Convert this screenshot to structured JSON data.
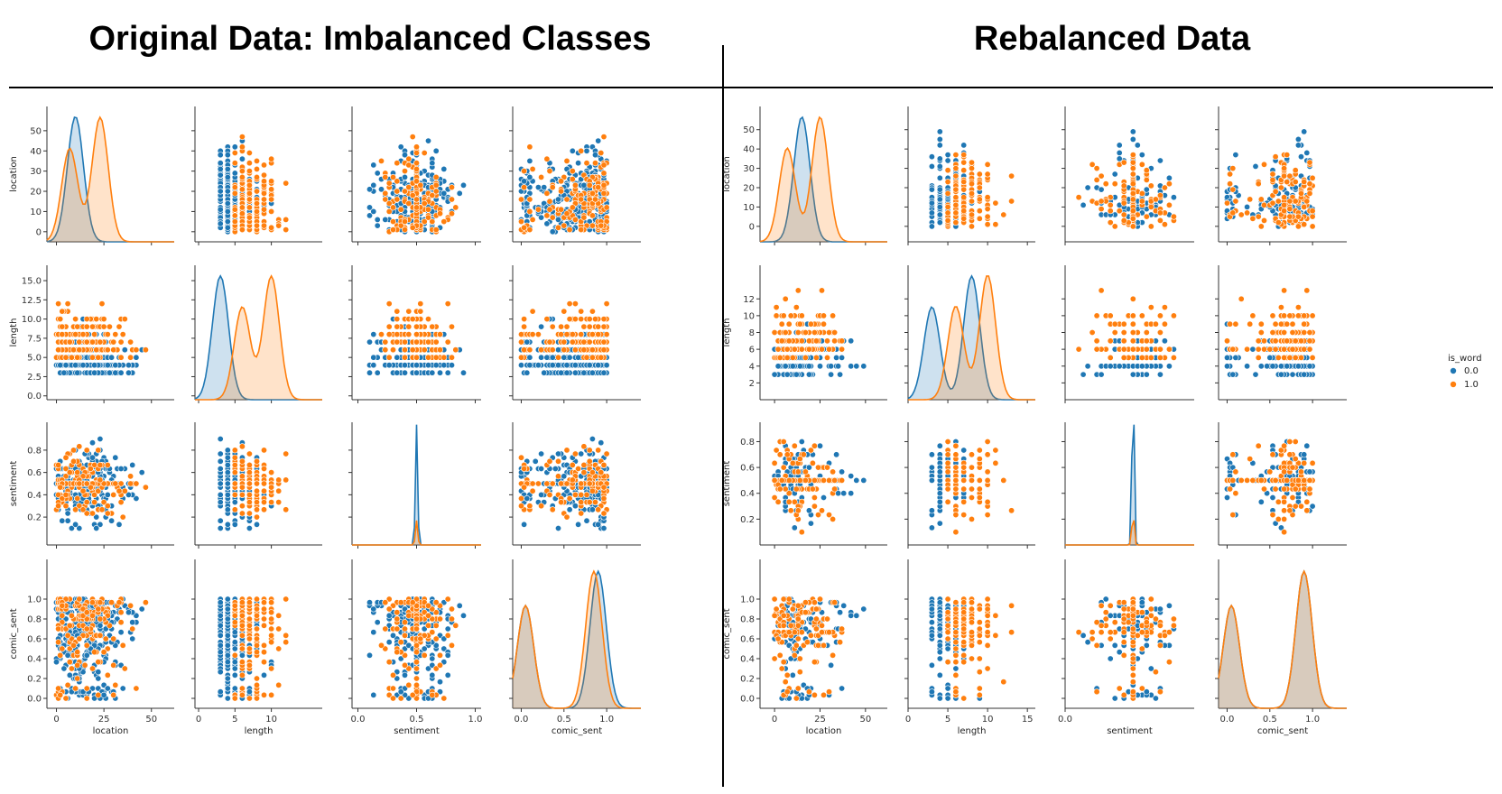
{
  "titles": {
    "left": "Original Data: Imbalanced Classes",
    "right": "Rebalanced Data"
  },
  "colors": {
    "class_0": "#1f77b4",
    "class_1": "#ff7f0e"
  },
  "legend": {
    "title": "is_word",
    "labels": [
      "0.0",
      "1.0"
    ]
  },
  "chart_data": [
    {
      "type": "pairplot",
      "title": "Original Data: Imbalanced Classes",
      "variables": [
        "location",
        "length",
        "sentiment",
        "comic_sent"
      ],
      "hue": "is_word",
      "series_names": [
        "0.0",
        "1.0"
      ],
      "axes": {
        "location": {
          "range": [
            -5,
            62
          ],
          "ticks": [
            0,
            10,
            20,
            30,
            40,
            50
          ],
          "tick_labels": [
            "0",
            "10",
            "20",
            "30",
            "40",
            "50"
          ],
          "x_ticks": [
            0,
            25,
            50
          ],
          "x_tick_labels": [
            "0",
            "25",
            "50"
          ]
        },
        "length": {
          "range": [
            -0.5,
            17
          ],
          "ticks": [
            0,
            2.5,
            5,
            7.5,
            10,
            12.5,
            15
          ],
          "tick_labels": [
            "0.0",
            "2.5",
            "5.0",
            "7.5",
            "10.0",
            "12.5",
            "15.0"
          ],
          "x_ticks": [
            0,
            5,
            10
          ],
          "x_tick_labels": [
            "0",
            "5",
            "10"
          ]
        },
        "sentiment": {
          "range": [
            -0.05,
            1.05
          ],
          "ticks": [
            0.2,
            0.4,
            0.6,
            0.8
          ],
          "tick_labels": [
            "0.2",
            "0.4",
            "0.6",
            "0.8"
          ],
          "x_ticks": [
            0,
            0.5,
            1.0
          ],
          "x_tick_labels": [
            "0.0",
            "0.5",
            "1.0"
          ]
        },
        "comic_sent": {
          "range": [
            -0.1,
            1.4
          ],
          "ticks": [
            0,
            0.2,
            0.4,
            0.6,
            0.8,
            1.0
          ],
          "tick_labels": [
            "0.0",
            "0.2",
            "0.4",
            "0.6",
            "0.8",
            "1.0"
          ],
          "x_ticks": [
            0,
            0.5,
            1.0
          ],
          "x_tick_labels": [
            "0.0",
            "0.5",
            "1.0"
          ]
        }
      },
      "data_ranges": {
        "location": [
          0,
          54
        ],
        "length": [
          1,
          16
        ],
        "sentiment": [
          0.1,
          0.9
        ],
        "comic_sent": [
          0.0,
          1.0
        ]
      },
      "point_count": {
        "0.0": 320,
        "1.0": 160
      },
      "density_modes": {
        "location": {
          "0.0": [
            10
          ],
          "1.0": [
            7,
            23
          ]
        },
        "length": {
          "0.0": [
            3
          ],
          "1.0": [
            6,
            10
          ]
        },
        "sentiment": {
          "0.0": [
            0.5
          ],
          "1.0": [
            0.5
          ]
        },
        "comic_sent": {
          "0.0": [
            0.05,
            0.9
          ],
          "1.0": [
            0.05,
            0.85
          ]
        }
      }
    },
    {
      "type": "pairplot",
      "title": "Rebalanced Data",
      "variables": [
        "location",
        "length",
        "sentiment",
        "comic_sent"
      ],
      "hue": "is_word",
      "series_names": [
        "0.0",
        "1.0"
      ],
      "axes": {
        "location": {
          "range": [
            -8,
            62
          ],
          "ticks": [
            0,
            10,
            20,
            30,
            40,
            50
          ],
          "tick_labels": [
            "0",
            "10",
            "20",
            "30",
            "40",
            "50"
          ],
          "x_ticks": [
            0,
            25,
            50
          ],
          "x_tick_labels": [
            "0",
            "25",
            "50"
          ]
        },
        "length": {
          "range": [
            0,
            16
          ],
          "ticks": [
            2,
            4,
            6,
            8,
            10,
            12
          ],
          "tick_labels": [
            "2",
            "4",
            "6",
            "8",
            "10",
            "12"
          ],
          "x_ticks": [
            0,
            5,
            10,
            15
          ],
          "x_tick_labels": [
            "0",
            "5",
            "10",
            "15"
          ]
        },
        "sentiment": {
          "range": [
            0,
            0.95
          ],
          "ticks": [
            0.2,
            0.4,
            0.6,
            0.8
          ],
          "tick_labels": [
            "0.2",
            "0.4",
            "0.6",
            "0.8"
          ],
          "x_ticks": [
            0
          ],
          "x_tick_labels": [
            "0.0"
          ]
        },
        "comic_sent": {
          "range": [
            -0.1,
            1.4
          ],
          "ticks": [
            0,
            0.2,
            0.4,
            0.6,
            0.8,
            1.0
          ],
          "tick_labels": [
            "0.0",
            "0.2",
            "0.4",
            "0.6",
            "0.8",
            "1.0"
          ],
          "x_ticks": [
            0,
            0.5,
            1.0
          ],
          "x_tick_labels": [
            "0.0",
            "0.5",
            "1.0"
          ]
        }
      },
      "data_ranges": {
        "location": [
          0,
          54
        ],
        "length": [
          1,
          13
        ],
        "sentiment": [
          0.1,
          0.9
        ],
        "comic_sent": [
          0.0,
          1.0
        ]
      },
      "point_count": {
        "0.0": 120,
        "1.0": 120
      },
      "density_modes": {
        "location": {
          "0.0": [
            15
          ],
          "1.0": [
            7,
            25
          ]
        },
        "length": {
          "0.0": [
            3,
            8
          ],
          "1.0": [
            6,
            10
          ]
        },
        "sentiment": {
          "0.0": [
            0.5
          ],
          "1.0": [
            0.5
          ]
        },
        "comic_sent": {
          "0.0": [
            0.05,
            0.9
          ],
          "1.0": [
            0.05,
            0.9
          ]
        }
      },
      "legend": {
        "title": "is_word",
        "entries": [
          "0.0",
          "1.0"
        ],
        "placement": "right"
      }
    }
  ]
}
